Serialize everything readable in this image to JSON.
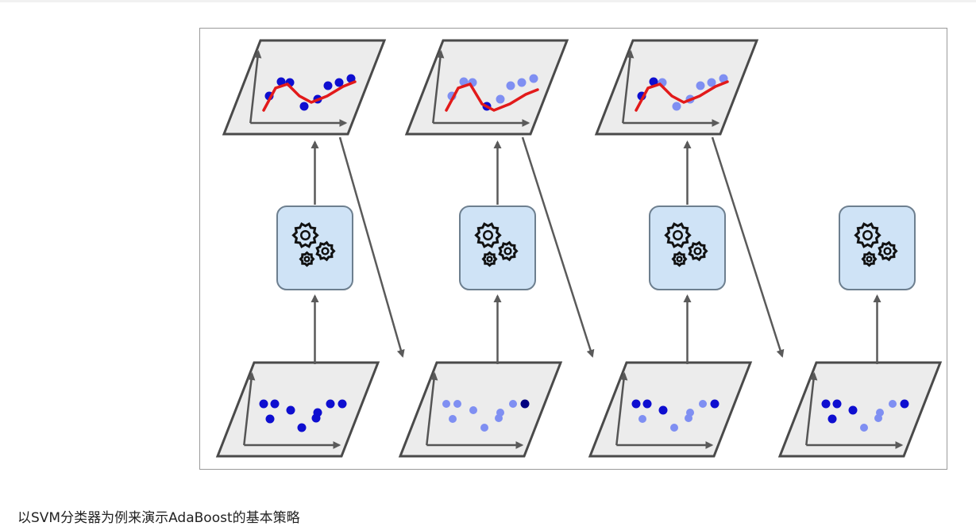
{
  "caption": "以SVM分类器为例来演示AdaBoost的基本策略",
  "colors": {
    "panel_fill": "#ececec",
    "panel_stroke": "#4a4a4a",
    "gear_box_fill": "#cfe3f6",
    "gear_box_stroke": "#6d7f8f",
    "gear": "#111111",
    "arrow": "#5a5a5a",
    "fit_curve": "#e21a1a",
    "point_dark": "#0e0ed0",
    "point_light": "#7f8ff2",
    "point_very_dark": "#000080"
  },
  "icons": {
    "model_panel": "scatter-with-fit-curve",
    "learner_box": "gears-icon",
    "data_panel": "weighted-scatter-plot"
  },
  "stages": [
    {
      "name": "stage-1",
      "has_model": true,
      "data_point_weights": [
        "dark",
        "dark",
        "dark",
        "dark",
        "dark",
        "dark",
        "dark",
        "dark",
        "dark"
      ],
      "model_point_weights": [
        "dark",
        "dark",
        "dark",
        "dark",
        "dark",
        "dark",
        "dark",
        "dark"
      ]
    },
    {
      "name": "stage-2",
      "has_model": true,
      "data_point_weights": [
        "light",
        "light",
        "light",
        "light",
        "light",
        "light",
        "very_dark",
        "light",
        "light"
      ],
      "model_point_weights": [
        "light",
        "light",
        "light",
        "dark",
        "light",
        "light",
        "light",
        "light"
      ]
    },
    {
      "name": "stage-3",
      "has_model": true,
      "data_point_weights": [
        "dark",
        "dark",
        "dark",
        "light",
        "light",
        "light",
        "dark",
        "light",
        "light"
      ],
      "model_point_weights": [
        "dark",
        "dark",
        "light",
        "light",
        "light",
        "light",
        "light",
        "light"
      ]
    },
    {
      "name": "stage-4",
      "has_model": false,
      "data_point_weights": [
        "dark",
        "dark",
        "dark",
        "dark",
        "light",
        "light",
        "dark",
        "light",
        "light"
      ]
    }
  ]
}
